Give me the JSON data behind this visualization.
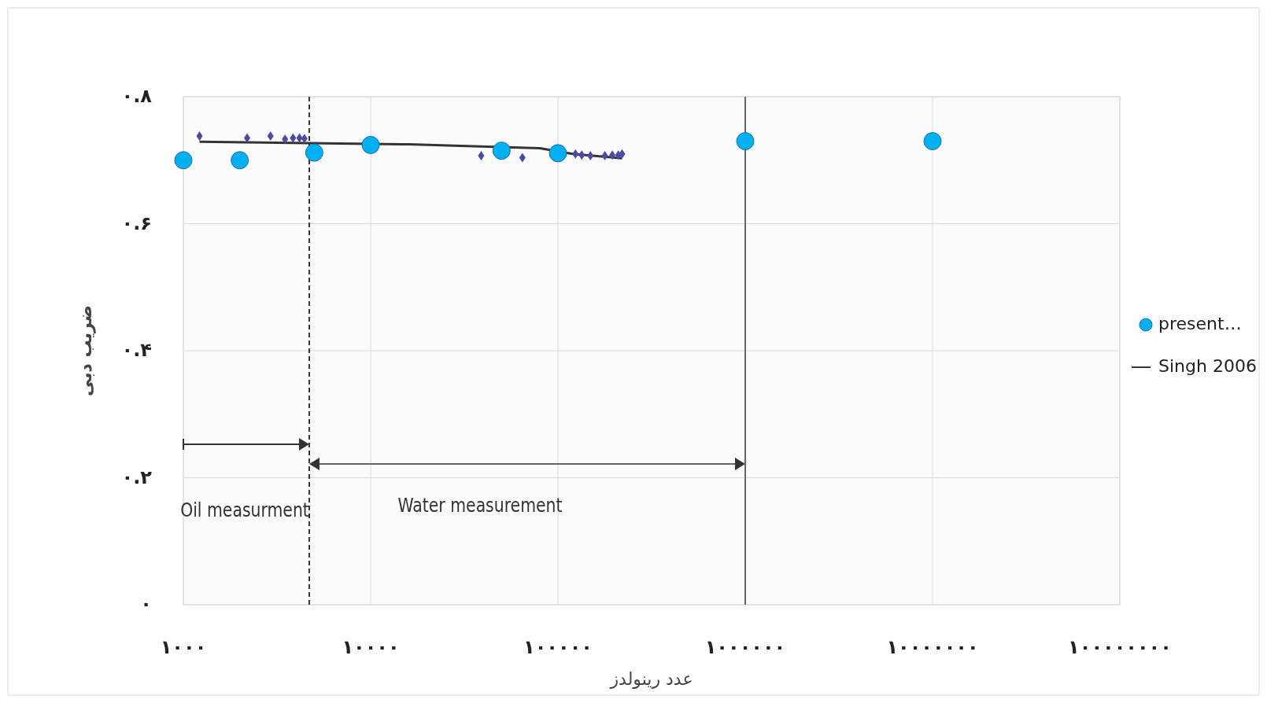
{
  "chart_data": {
    "type": "scatter",
    "xlabel": "عدد رینولدز",
    "ylabel": "ضریب دبی",
    "log": "x",
    "grid": true,
    "legend": "right",
    "xlim": [
      1000,
      100000000
    ],
    "xticks": [
      {
        "value": 1000,
        "label": "۱۰۰۰"
      },
      {
        "value": 10000,
        "label": "۱۰۰۰۰"
      },
      {
        "value": 100000,
        "label": "۱۰۰۰۰۰"
      },
      {
        "value": 1000000,
        "label": "۱۰۰۰۰۰۰"
      },
      {
        "value": 10000000,
        "label": "۱۰۰۰۰۰۰۰"
      },
      {
        "value": 100000000,
        "label": "۱۰۰۰۰۰۰۰۰"
      }
    ],
    "ylim": [
      0,
      0.8
    ],
    "yticks": [
      {
        "value": 0,
        "label": "۰"
      },
      {
        "value": 0.2,
        "label": "۰.۲"
      },
      {
        "value": 0.4,
        "label": "۰.۴"
      },
      {
        "value": 0.6,
        "label": "۰.۶"
      },
      {
        "value": 0.8,
        "label": "۰.۸"
      }
    ],
    "series": [
      {
        "name": "present…",
        "marker": "circle",
        "color": "#00b0f0",
        "x": [
          1000,
          2000,
          5000,
          10000,
          50000,
          100000,
          1000000,
          10000000
        ],
        "values": [
          0.7,
          0.7,
          0.712,
          0.724,
          0.715,
          0.711,
          0.73,
          0.73
        ]
      },
      {
        "name": "Singh 2006",
        "type": "line",
        "marker": "none",
        "color": "#333333",
        "x": [
          1220,
          16000,
          80000,
          120000,
          220000
        ],
        "values": [
          0.729,
          0.725,
          0.719,
          0.71,
          0.703
        ]
      },
      {
        "marker": "diamond",
        "color": "#4b4ba0",
        "x": [
          1220,
          2190,
          2920,
          3490,
          3850,
          4170,
          4430,
          38900,
          64600,
          124000,
          134000,
          149000,
          178000,
          195000,
          210000,
          220000
        ],
        "values": [
          0.738,
          0.735,
          0.738,
          0.733,
          0.735,
          0.735,
          0.734,
          0.707,
          0.704,
          0.71,
          0.708,
          0.707,
          0.707,
          0.708,
          0.708,
          0.71
        ]
      }
    ],
    "ref_lines": [
      {
        "axis": "x",
        "value": 4700,
        "line_style": "dashed",
        "color": "#333333"
      },
      {
        "axis": "x",
        "value": 1000000,
        "line_style": "solid",
        "color": "#666666"
      }
    ],
    "annotations": [
      "Oil measurment",
      "Water measurement"
    ]
  }
}
